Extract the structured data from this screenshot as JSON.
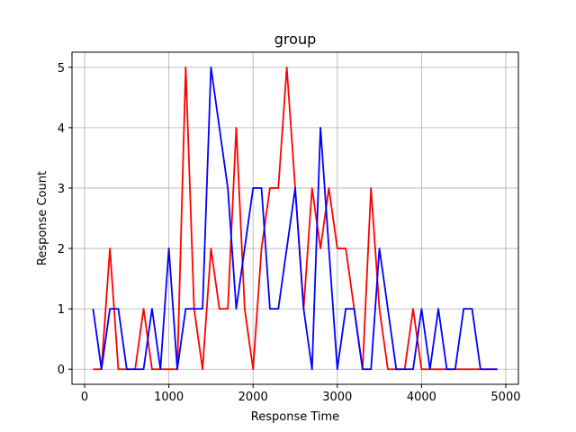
{
  "chart_data": {
    "type": "line",
    "title": "group",
    "xlabel": "Response Time",
    "ylabel": "Response Count",
    "xlim": [
      -150,
      5150
    ],
    "ylim": [
      -0.25,
      5.25
    ],
    "xticks": [
      0,
      1000,
      2000,
      3000,
      4000,
      5000
    ],
    "yticks": [
      0,
      1,
      2,
      3,
      4,
      5
    ],
    "grid": true,
    "x": [
      100,
      200,
      300,
      400,
      500,
      600,
      700,
      800,
      900,
      1000,
      1100,
      1200,
      1300,
      1400,
      1500,
      1600,
      1700,
      1800,
      1900,
      2000,
      2100,
      2200,
      2300,
      2400,
      2500,
      2600,
      2700,
      2800,
      2900,
      3000,
      3100,
      3200,
      3300,
      3400,
      3500,
      3600,
      3700,
      3800,
      3900,
      4000,
      4100,
      4200,
      4300,
      4400,
      4500,
      4600,
      4700,
      4800,
      4900
    ],
    "series": [
      {
        "color": "#ff0000",
        "values": [
          0,
          0,
          2,
          0,
          0,
          0,
          1,
          0,
          0,
          0,
          0,
          5,
          1,
          0,
          2,
          1,
          1,
          4,
          1,
          0,
          2,
          3,
          3,
          5,
          3,
          1,
          3,
          2,
          3,
          2,
          2,
          1,
          0,
          3,
          1,
          0,
          0,
          0,
          1,
          0,
          0,
          0,
          0,
          0,
          0,
          0,
          0,
          0,
          0
        ]
      },
      {
        "color": "#0000ff",
        "values": [
          1,
          0,
          1,
          1,
          0,
          0,
          0,
          1,
          0,
          2,
          0,
          1,
          1,
          1,
          5,
          4,
          3,
          1,
          2,
          3,
          3,
          1,
          1,
          2,
          3,
          1,
          0,
          4,
          2,
          0,
          1,
          1,
          0,
          0,
          2,
          1,
          0,
          0,
          0,
          1,
          0,
          1,
          0,
          0,
          1,
          1,
          0,
          0,
          0
        ]
      }
    ]
  }
}
